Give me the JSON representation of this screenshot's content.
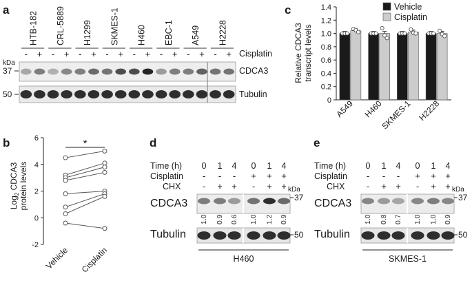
{
  "figure": {
    "panels": {
      "a": "a",
      "b": "b",
      "c": "c",
      "d": "d",
      "e": "e"
    },
    "kda_unit": "kDa",
    "panel_a": {
      "cell_lines": [
        "HTB-182",
        "CRL-5889",
        "H1299",
        "SKMES-1",
        "H460",
        "EBC-1",
        "A549",
        "H2228"
      ],
      "treatment_label": "Cisplatin",
      "signs": [
        "-",
        "+"
      ],
      "markers": [
        "37",
        "50"
      ],
      "blots": [
        "CDCA3",
        "Tubulin"
      ],
      "cdca3_band_intensity": [
        0.35,
        0.55,
        0.3,
        0.5,
        0.55,
        0.65,
        0.6,
        0.8,
        0.8,
        1.0,
        0.4,
        0.55,
        0.55,
        0.7,
        0.6,
        0.6
      ],
      "tubulin_band_intensity": [
        0.95,
        0.95,
        0.95,
        0.95,
        0.95,
        0.95,
        0.95,
        0.95,
        0.95,
        0.95,
        0.95,
        0.95,
        0.95,
        0.95,
        0.95,
        0.95
      ]
    },
    "panel_d": {
      "cell_line": "H460",
      "row_labels": [
        "Time (h)",
        "Cisplatin",
        "CHX"
      ],
      "time": [
        "0",
        "1",
        "4",
        "0",
        "1",
        "4"
      ],
      "cisplatin": [
        "-",
        "-",
        "-",
        "+",
        "+",
        "+"
      ],
      "chx": [
        "-",
        "+",
        "+",
        "-",
        "+",
        "+"
      ],
      "blots": [
        "CDCA3",
        "Tubulin"
      ],
      "markers": [
        "37",
        "50"
      ],
      "quantification": [
        "1.0",
        "0.9",
        "0.6",
        "1.0",
        "1.2",
        "0.9"
      ],
      "cdca3_band_intensity": [
        0.55,
        0.55,
        0.4,
        0.6,
        0.95,
        0.65
      ]
    },
    "panel_e": {
      "cell_line": "SKMES-1",
      "row_labels": [
        "Time (h)",
        "Cisplatin",
        "CHX"
      ],
      "time": [
        "0",
        "1",
        "4",
        "0",
        "1",
        "4"
      ],
      "cisplatin": [
        "-",
        "-",
        "-",
        "+",
        "+",
        "+"
      ],
      "chx": [
        "-",
        "+",
        "+",
        "-",
        "+",
        "+"
      ],
      "blots": [
        "CDCA3",
        "Tubulin"
      ],
      "markers": [
        "37",
        "50"
      ],
      "quantification": [
        "1.0",
        "0.8",
        "0.7",
        "1.0",
        "1.0",
        "0.9"
      ],
      "cdca3_band_intensity": [
        0.5,
        0.4,
        0.35,
        0.5,
        0.55,
        0.5
      ]
    }
  },
  "chart_data": [
    {
      "type": "scatter",
      "panel": "b",
      "categories": [
        "Vehicle",
        "Cisplatin"
      ],
      "ylabel_parts": [
        "Log",
        "2",
        " CDCA3"
      ],
      "ylabel_line2": "protein levels",
      "ylim": [
        -2,
        6
      ],
      "yticks": [
        "6",
        "4",
        "2",
        "0",
        "-2"
      ],
      "significance": "*",
      "pairs": [
        [
          4.5,
          5.0
        ],
        [
          3.2,
          4.1
        ],
        [
          3.0,
          3.8
        ],
        [
          2.8,
          3.4
        ],
        [
          1.8,
          2.0
        ],
        [
          0.8,
          1.8
        ],
        [
          0.3,
          1.6
        ],
        [
          -0.4,
          -0.8
        ]
      ]
    },
    {
      "type": "bar",
      "panel": "c",
      "categories": [
        "A549",
        "H460",
        "SKMES-1",
        "H2228"
      ],
      "ylabel_line1": "Relative CDCA3",
      "ylabel_line2": "transcript levels",
      "ylim": [
        0,
        1.4
      ],
      "yticks": [
        "1.4",
        "1.2",
        "1.0",
        "0.8",
        "0.6",
        "0.4",
        "0.2",
        "0"
      ],
      "series": [
        {
          "name": "Vehicle",
          "color": "#1a1a1a",
          "values": [
            1.0,
            1.0,
            1.0,
            1.0
          ],
          "points": [
            [
              1.0,
              1.0,
              1.0
            ],
            [
              1.0,
              1.0,
              1.0
            ],
            [
              1.0,
              1.0,
              1.0
            ],
            [
              1.0,
              1.0,
              1.0
            ]
          ]
        },
        {
          "name": "Cisplatin",
          "color": "#cccccc",
          "values": [
            1.04,
            1.0,
            1.02,
            1.0
          ],
          "points": [
            [
              1.07,
              1.05,
              1.02
            ],
            [
              1.08,
              0.97,
              0.93
            ],
            [
              1.06,
              1.01,
              1.0
            ],
            [
              1.04,
              0.99,
              0.96
            ]
          ]
        }
      ]
    }
  ]
}
